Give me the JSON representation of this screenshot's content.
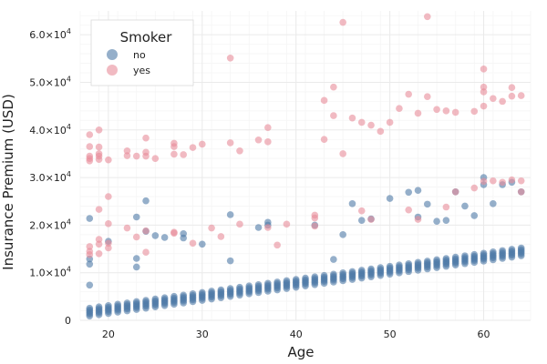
{
  "chart_data": {
    "type": "scatter",
    "title": "",
    "xlabel": "Age",
    "ylabel": "Insurance Premium (USD)",
    "xlim": [
      17,
      65
    ],
    "ylim": [
      0,
      65000
    ],
    "x_ticks": [
      20,
      30,
      40,
      50,
      60
    ],
    "y_ticks": [
      {
        "value": 0,
        "mantissa": "0",
        "exponent": ""
      },
      {
        "value": 10000,
        "mantissa": "1.0×10",
        "exponent": "4"
      },
      {
        "value": 20000,
        "mantissa": "2.0×10",
        "exponent": "4"
      },
      {
        "value": 30000,
        "mantissa": "3.0×10",
        "exponent": "4"
      },
      {
        "value": 40000,
        "mantissa": "4.0×10",
        "exponent": "4"
      },
      {
        "value": 50000,
        "mantissa": "5.0×10",
        "exponent": "4"
      },
      {
        "value": 60000,
        "mantissa": "6.0×10",
        "exponent": "4"
      }
    ],
    "grid": true,
    "legend": {
      "title": "Smoker",
      "position": "top-left"
    },
    "series": [
      {
        "name": "no",
        "color": "#4e79a7",
        "baseline": {
          "age_min": 18,
          "age_max": 64,
          "intercept_at_18": 1800,
          "slope_per_year": 275
        },
        "points": [
          [
            18,
            7400
          ],
          [
            18,
            11800
          ],
          [
            18,
            12900
          ],
          [
            18,
            21400
          ],
          [
            20,
            16600
          ],
          [
            23,
            13000
          ],
          [
            23,
            11200
          ],
          [
            23,
            21700
          ],
          [
            24,
            25100
          ],
          [
            24,
            18700
          ],
          [
            25,
            17800
          ],
          [
            26,
            17400
          ],
          [
            28,
            18200
          ],
          [
            28,
            17300
          ],
          [
            30,
            16000
          ],
          [
            33,
            22200
          ],
          [
            33,
            12500
          ],
          [
            37,
            20600
          ],
          [
            37,
            20000
          ],
          [
            45,
            18000
          ],
          [
            44,
            12800
          ],
          [
            46,
            24500
          ],
          [
            47,
            21000
          ],
          [
            48,
            21300
          ],
          [
            50,
            25600
          ],
          [
            52,
            26900
          ],
          [
            53,
            27300
          ],
          [
            54,
            24400
          ],
          [
            55,
            20800
          ],
          [
            56,
            21000
          ],
          [
            57,
            27000
          ],
          [
            58,
            24000
          ],
          [
            59,
            22000
          ],
          [
            60,
            28500
          ],
          [
            60,
            30000
          ],
          [
            61,
            24500
          ],
          [
            62,
            28500
          ],
          [
            63,
            29000
          ],
          [
            64,
            27000
          ],
          [
            42,
            20000
          ],
          [
            36,
            19500
          ],
          [
            53,
            21700
          ]
        ]
      },
      {
        "name": "yes",
        "color": "#e88c99",
        "points": [
          [
            18,
            39000
          ],
          [
            18,
            36500
          ],
          [
            18,
            34500
          ],
          [
            18,
            34000
          ],
          [
            18,
            33500
          ],
          [
            18,
            15500
          ],
          [
            18,
            14500
          ],
          [
            18,
            13800
          ],
          [
            19,
            40000
          ],
          [
            19,
            36400
          ],
          [
            19,
            35000
          ],
          [
            19,
            34500
          ],
          [
            19,
            33800
          ],
          [
            19,
            17000
          ],
          [
            19,
            16000
          ],
          [
            19,
            14000
          ],
          [
            19,
            23300
          ],
          [
            20,
            26000
          ],
          [
            20,
            33700
          ],
          [
            20,
            20300
          ],
          [
            20,
            16200
          ],
          [
            20,
            15200
          ],
          [
            22,
            35600
          ],
          [
            22,
            34600
          ],
          [
            22,
            19400
          ],
          [
            23,
            34500
          ],
          [
            23,
            17500
          ],
          [
            24,
            38300
          ],
          [
            24,
            35300
          ],
          [
            24,
            34500
          ],
          [
            24,
            14300
          ],
          [
            24,
            18800
          ],
          [
            25,
            34000
          ],
          [
            27,
            36500
          ],
          [
            27,
            37200
          ],
          [
            27,
            18500
          ],
          [
            27,
            18300
          ],
          [
            27,
            34900
          ],
          [
            28,
            34800
          ],
          [
            29,
            36300
          ],
          [
            29,
            16200
          ],
          [
            30,
            37000
          ],
          [
            31,
            19400
          ],
          [
            32,
            17600
          ],
          [
            33,
            55100
          ],
          [
            33,
            37300
          ],
          [
            34,
            35600
          ],
          [
            34,
            20200
          ],
          [
            36,
            37900
          ],
          [
            37,
            40500
          ],
          [
            37,
            37500
          ],
          [
            37,
            19500
          ],
          [
            38,
            15800
          ],
          [
            39,
            20200
          ],
          [
            42,
            22100
          ],
          [
            42,
            21500
          ],
          [
            42,
            19800
          ],
          [
            43,
            46200
          ],
          [
            43,
            38000
          ],
          [
            44,
            49000
          ],
          [
            44,
            43000
          ],
          [
            45,
            35000
          ],
          [
            45,
            62600
          ],
          [
            46,
            42500
          ],
          [
            47,
            41600
          ],
          [
            47,
            23000
          ],
          [
            48,
            41000
          ],
          [
            48,
            21200
          ],
          [
            49,
            39700
          ],
          [
            50,
            41600
          ],
          [
            51,
            44500
          ],
          [
            52,
            47500
          ],
          [
            52,
            23200
          ],
          [
            53,
            43500
          ],
          [
            53,
            21200
          ],
          [
            54,
            63800
          ],
          [
            54,
            47000
          ],
          [
            55,
            44300
          ],
          [
            56,
            44000
          ],
          [
            56,
            23800
          ],
          [
            57,
            43700
          ],
          [
            57,
            27000
          ],
          [
            59,
            43900
          ],
          [
            59,
            27800
          ],
          [
            60,
            52800
          ],
          [
            60,
            49000
          ],
          [
            60,
            48000
          ],
          [
            60,
            45000
          ],
          [
            60,
            29200
          ],
          [
            61,
            46600
          ],
          [
            61,
            29300
          ],
          [
            62,
            46000
          ],
          [
            62,
            29000
          ],
          [
            63,
            48900
          ],
          [
            63,
            47100
          ],
          [
            63,
            29500
          ],
          [
            64,
            47200
          ],
          [
            64,
            29300
          ],
          [
            64,
            27000
          ]
        ]
      }
    ]
  }
}
